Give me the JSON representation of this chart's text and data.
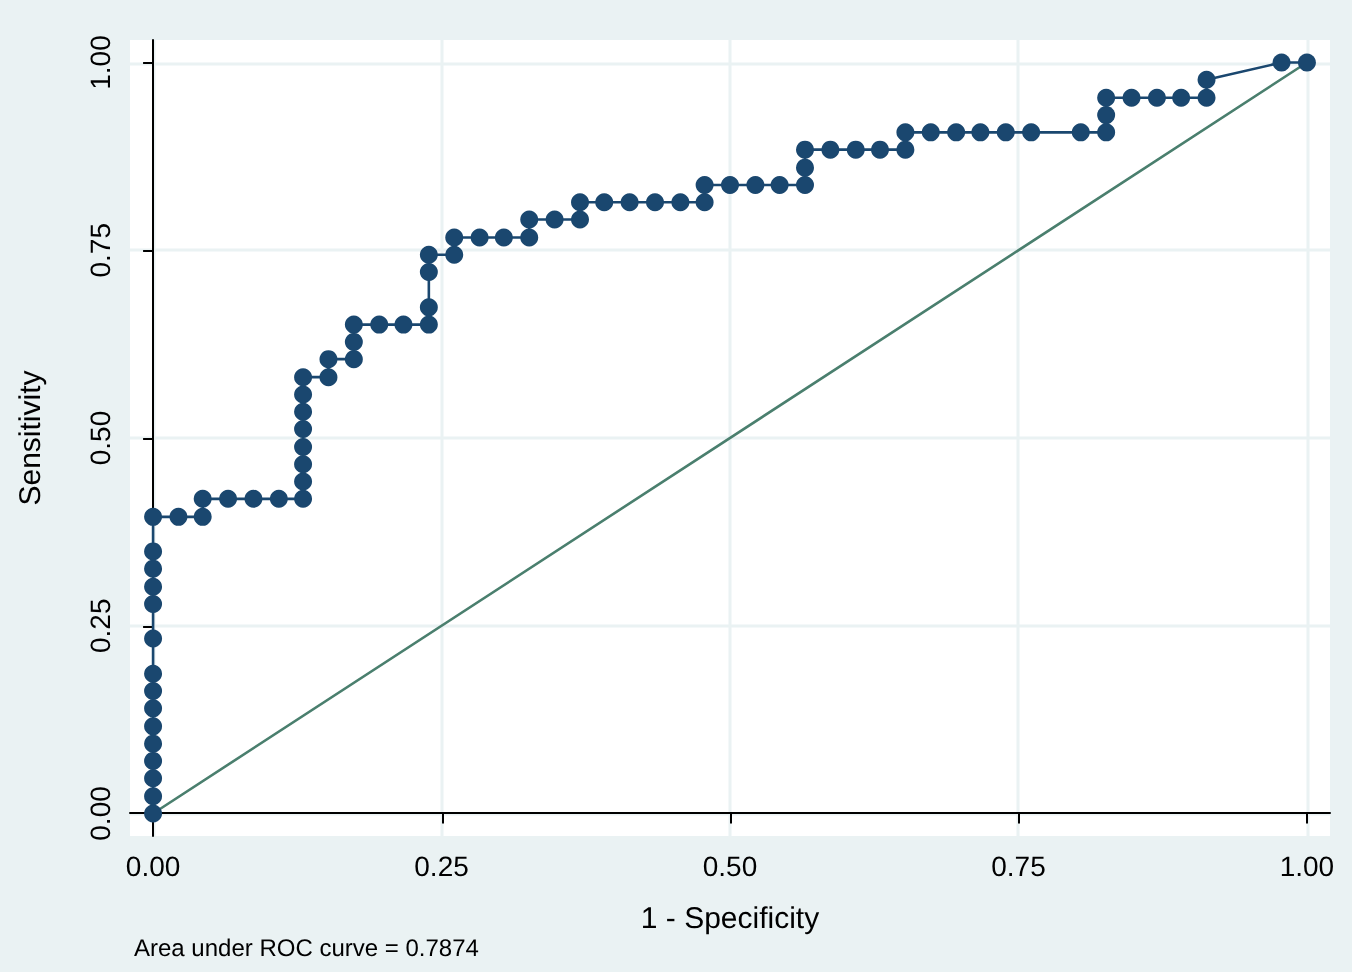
{
  "chart_data": {
    "type": "line",
    "xlabel": "1 - Specificity",
    "ylabel": "Sensitivity",
    "annotations": [
      "Area under ROC curve = 0.7874"
    ],
    "xlim": [
      -0.02,
      1.02
    ],
    "ylim": [
      -0.03,
      1.03
    ],
    "xticks": [
      {
        "value": 0,
        "label": "0.00"
      },
      {
        "value": 0.25,
        "label": "0.25"
      },
      {
        "value": 0.5,
        "label": "0.50"
      },
      {
        "value": 0.75,
        "label": "0.75"
      },
      {
        "value": 1,
        "label": "1.00"
      }
    ],
    "yticks": [
      {
        "value": 0,
        "label": "0.00"
      },
      {
        "value": 0.25,
        "label": "0.25"
      },
      {
        "value": 0.5,
        "label": "0.50"
      },
      {
        "value": 0.75,
        "label": "0.75"
      },
      {
        "value": 1,
        "label": "1.00"
      }
    ],
    "grid": true,
    "series": [
      {
        "color": "#1a476f",
        "marker": "circle",
        "x": [
          0,
          0,
          0,
          0,
          0,
          0,
          0,
          0,
          0,
          0,
          0,
          0,
          0,
          0,
          0,
          0.022,
          0.043,
          0.043,
          0.065,
          0.087,
          0.109,
          0.13,
          0.13,
          0.13,
          0.13,
          0.13,
          0.13,
          0.13,
          0.13,
          0.152,
          0.152,
          0.174,
          0.174,
          0.174,
          0.196,
          0.217,
          0.239,
          0.239,
          0.239,
          0.239,
          0.261,
          0.261,
          0.283,
          0.304,
          0.326,
          0.326,
          0.348,
          0.37,
          0.37,
          0.391,
          0.413,
          0.435,
          0.457,
          0.478,
          0.478,
          0.5,
          0.522,
          0.543,
          0.565,
          0.565,
          0.565,
          0.587,
          0.609,
          0.63,
          0.652,
          0.652,
          0.674,
          0.696,
          0.717,
          0.739,
          0.761,
          0.804,
          0.826,
          0.826,
          0.826,
          0.848,
          0.87,
          0.891,
          0.913,
          0.913,
          0.978,
          1
        ],
        "values": [
          0,
          0.023,
          0.047,
          0.07,
          0.093,
          0.116,
          0.14,
          0.163,
          0.186,
          0.233,
          0.279,
          0.302,
          0.326,
          0.349,
          0.395,
          0.395,
          0.395,
          0.419,
          0.419,
          0.419,
          0.419,
          0.419,
          0.442,
          0.465,
          0.488,
          0.512,
          0.535,
          0.558,
          0.581,
          0.581,
          0.605,
          0.605,
          0.628,
          0.651,
          0.651,
          0.651,
          0.651,
          0.674,
          0.721,
          0.744,
          0.744,
          0.767,
          0.767,
          0.767,
          0.767,
          0.791,
          0.791,
          0.791,
          0.814,
          0.814,
          0.814,
          0.814,
          0.814,
          0.814,
          0.837,
          0.837,
          0.837,
          0.837,
          0.837,
          0.86,
          0.884,
          0.884,
          0.884,
          0.884,
          0.884,
          0.907,
          0.907,
          0.907,
          0.907,
          0.907,
          0.907,
          0.907,
          0.907,
          0.93,
          0.953,
          0.953,
          0.953,
          0.953,
          0.953,
          0.977,
          1,
          1
        ]
      },
      {
        "color": "#4a7f6e",
        "marker": "none",
        "x": [
          0,
          1
        ],
        "values": [
          0,
          1
        ]
      }
    ]
  }
}
